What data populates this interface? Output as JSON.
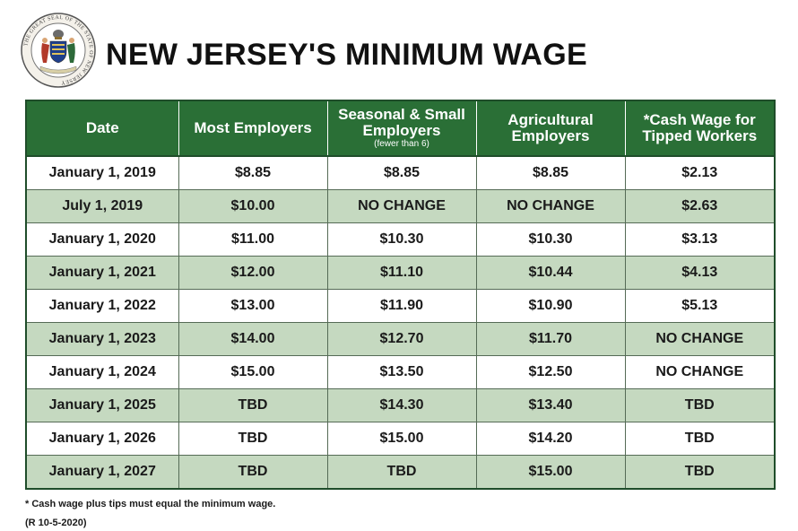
{
  "header": {
    "title": "NEW JERSEY'S MINIMUM WAGE",
    "seal_text": "THE GREAT SEAL OF THE STATE OF NEW JERSEY",
    "seal_icon": "state-seal-icon"
  },
  "table": {
    "columns": [
      {
        "label": "Date",
        "sub": ""
      },
      {
        "label": "Most Employers",
        "sub": ""
      },
      {
        "label": "Seasonal & Small Employers",
        "sub": "(fewer than 6)"
      },
      {
        "label": "Agricultural Employers",
        "sub": ""
      },
      {
        "label": "*Cash Wage for Tipped Workers",
        "sub": ""
      }
    ],
    "rows": [
      [
        "January 1, 2019",
        "$8.85",
        "$8.85",
        "$8.85",
        "$2.13"
      ],
      [
        "July 1, 2019",
        "$10.00",
        "NO CHANGE",
        "NO CHANGE",
        "$2.63"
      ],
      [
        "January 1, 2020",
        "$11.00",
        "$10.30",
        "$10.30",
        "$3.13"
      ],
      [
        "January 1, 2021",
        "$12.00",
        "$11.10",
        "$10.44",
        "$4.13"
      ],
      [
        "January 1, 2022",
        "$13.00",
        "$11.90",
        "$10.90",
        "$5.13"
      ],
      [
        "January 1, 2023",
        "$14.00",
        "$12.70",
        "$11.70",
        "NO CHANGE"
      ],
      [
        "January 1, 2024",
        "$15.00",
        "$13.50",
        "$12.50",
        "NO CHANGE"
      ],
      [
        "January 1, 2025",
        "TBD",
        "$14.30",
        "$13.40",
        "TBD"
      ],
      [
        "January 1, 2026",
        "TBD",
        "$15.00",
        "$14.20",
        "TBD"
      ],
      [
        "January 1, 2027",
        "TBD",
        "TBD",
        "$15.00",
        "TBD"
      ]
    ]
  },
  "footer": {
    "note": "* Cash wage plus tips must equal the minimum wage.",
    "revision": "(R 10-5-2020)"
  },
  "colors": {
    "header_green": "#2a6f36",
    "alt_row": "#c5d9c0"
  }
}
